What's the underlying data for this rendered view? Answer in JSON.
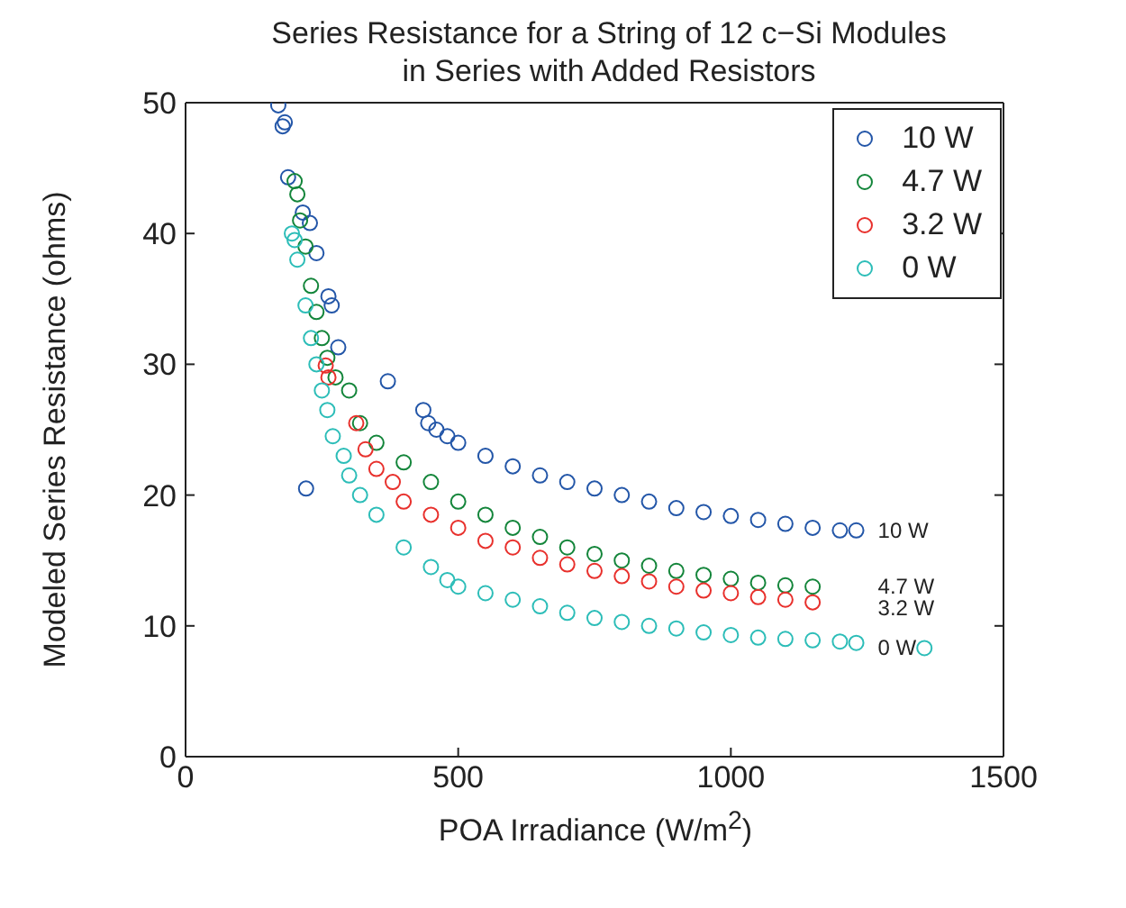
{
  "chart_data": {
    "type": "scatter",
    "title": "Series Resistance for a String of 12 c−Si Modules\nin Series with Added Resistors",
    "xlabel": "POA Irradiance (W/m$^{2}$)",
    "ylabel": "Modeled Series Resistance (ohms)",
    "xlim": [
      0,
      1500
    ],
    "xticks": [
      0,
      500,
      1000,
      1500
    ],
    "ylim": [
      0,
      50
    ],
    "yticks": [
      0,
      10,
      20,
      30,
      40,
      50
    ],
    "legend": "top right",
    "marker": "circle",
    "series": [
      {
        "name": "10 W",
        "color": "#2356a8",
        "x": [
          170,
          178,
          182,
          188,
          215,
          228,
          221,
          240,
          262,
          268,
          280,
          371,
          436,
          445,
          460,
          480,
          500,
          550,
          600,
          650,
          700,
          750,
          800,
          850,
          900,
          950,
          1000,
          1050,
          1100,
          1150,
          1200,
          1230
        ],
        "values": [
          49.8,
          48.2,
          48.5,
          44.3,
          41.6,
          40.8,
          20.5,
          38.5,
          35.2,
          34.5,
          31.3,
          28.7,
          26.5,
          25.5,
          25,
          24.5,
          24,
          23,
          22.2,
          21.5,
          21,
          20.5,
          20,
          19.5,
          19,
          18.7,
          18.4,
          18.1,
          17.8,
          17.5,
          17.3,
          17.3
        ]
      },
      {
        "name": "4.7 W",
        "color": "#13853a",
        "x": [
          200,
          205,
          210,
          220,
          230,
          240,
          250,
          260,
          275,
          300,
          320,
          350,
          400,
          450,
          500,
          550,
          600,
          650,
          700,
          750,
          800,
          850,
          900,
          950,
          1000,
          1050,
          1100,
          1150
        ],
        "values": [
          44,
          43,
          41,
          39,
          36,
          34,
          32,
          30.5,
          29,
          28,
          25.5,
          24,
          22.5,
          21,
          19.5,
          18.5,
          17.5,
          16.8,
          16,
          15.5,
          15,
          14.6,
          14.2,
          13.9,
          13.6,
          13.3,
          13.1,
          13
        ]
      },
      {
        "name": "3.2 W",
        "color": "#e8302c",
        "x": [
          257,
          262,
          313,
          330,
          350,
          380,
          400,
          450,
          500,
          550,
          600,
          650,
          700,
          750,
          800,
          850,
          900,
          950,
          1000,
          1050,
          1100,
          1150
        ],
        "values": [
          29.9,
          29,
          25.5,
          23.5,
          22,
          21,
          19.5,
          18.5,
          17.5,
          16.5,
          16,
          15.2,
          14.7,
          14.2,
          13.8,
          13.4,
          13,
          12.7,
          12.5,
          12.2,
          12,
          11.8
        ]
      },
      {
        "name": "0 W",
        "color": "#2cbdb8",
        "x": [
          195,
          200,
          205,
          220,
          230,
          240,
          250,
          260,
          270,
          290,
          300,
          320,
          350,
          400,
          450,
          480,
          500,
          550,
          600,
          650,
          700,
          750,
          800,
          850,
          900,
          950,
          1000,
          1050,
          1100,
          1150,
          1200,
          1230,
          1355
        ],
        "values": [
          40,
          39.5,
          38,
          34.5,
          32,
          30,
          28,
          26.5,
          24.5,
          23,
          21.5,
          20,
          18.5,
          16,
          14.5,
          13.5,
          13,
          12.5,
          12,
          11.5,
          11,
          10.6,
          10.3,
          10,
          9.8,
          9.5,
          9.3,
          9.1,
          9,
          8.9,
          8.8,
          8.7,
          8.3
        ]
      }
    ],
    "annotations": [
      "10 W",
      "4.7 W",
      "3.2 W",
      "0 W"
    ]
  }
}
